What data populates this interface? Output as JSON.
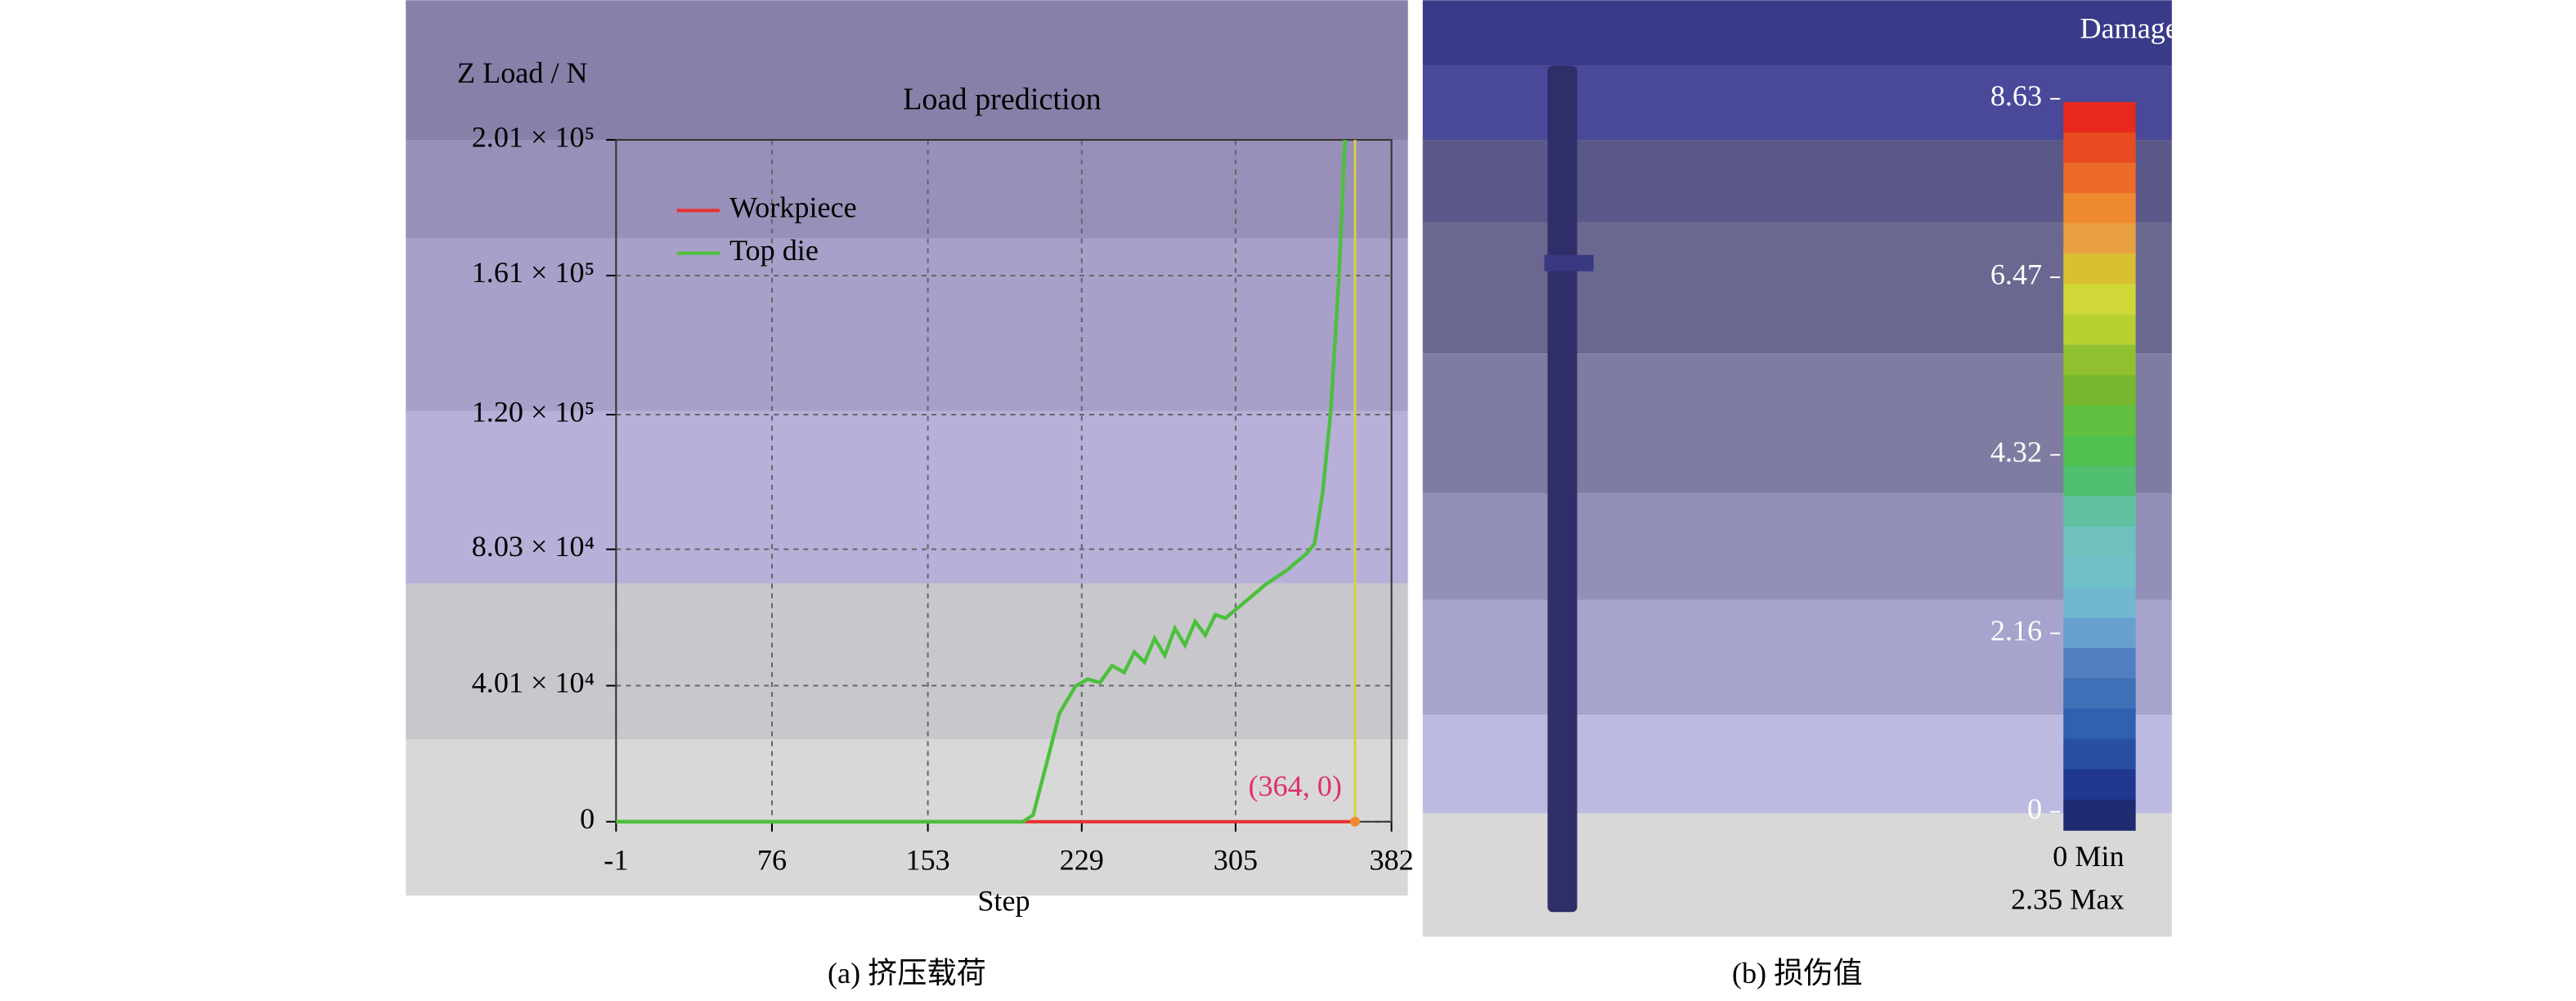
{
  "chart_data": {
    "type": "line",
    "title": "Load prediction",
    "y_label": "Z Load / N",
    "x_label": "Step",
    "caption": "(a) 挤压载荷",
    "xlim": [
      -1,
      382
    ],
    "xticks": [
      -1,
      76,
      153,
      229,
      305,
      382
    ],
    "ylim": [
      0,
      201000
    ],
    "yticks": [
      0,
      {
        "value": 40100,
        "label": "4.01 × 10⁴"
      },
      {
        "value": 80300,
        "label": "8.03 × 10⁴"
      },
      {
        "value": 120000,
        "label": "1.20 × 10⁵"
      },
      {
        "value": 161000,
        "label": "1.61 × 10⁵"
      },
      {
        "value": 201000,
        "label": "2.01 × 10⁵"
      }
    ],
    "grid": true,
    "legend": "upper-left",
    "series": [
      {
        "name": "Workpiece",
        "color": "#e83030",
        "x": [
          -1,
          364
        ],
        "values": [
          0,
          0
        ]
      },
      {
        "name": "Top die",
        "color": "#4cc03c",
        "x": [
          -1,
          50,
          100,
          150,
          200,
          205,
          212,
          218,
          222,
          226,
          232,
          238,
          244,
          250,
          255,
          260,
          265,
          270,
          275,
          280,
          285,
          290,
          295,
          300,
          310,
          320,
          330,
          336,
          340,
          344,
          348,
          352,
          356,
          359
        ],
        "values": [
          0,
          0,
          0,
          0,
          0,
          2000,
          18000,
          32000,
          36000,
          40000,
          42000,
          41000,
          46000,
          44000,
          50000,
          47000,
          54000,
          49000,
          57000,
          52000,
          59000,
          55000,
          61000,
          60000,
          65000,
          70000,
          74000,
          77000,
          79000,
          82000,
          97000,
          121000,
          160000,
          201000
        ]
      }
    ],
    "annotations": [
      {
        "text": "(364, 0)",
        "x": 364,
        "y": 0,
        "color": "#e0306a"
      }
    ]
  },
  "panel_b": {
    "title": "Damage",
    "caption": "(b) 损伤值",
    "min_label": "0 Min",
    "max_label": "2.35 Max",
    "colorbar": {
      "lim": [
        0,
        8.63
      ],
      "ticks": [
        8.63,
        6.47,
        4.32,
        2.16,
        0
      ],
      "colors": [
        "#e8281e",
        "#e84a22",
        "#ec6a2a",
        "#f08a30",
        "#e8a040",
        "#d8c030",
        "#d0d838",
        "#b8d030",
        "#90c030",
        "#78b830",
        "#60c040",
        "#50c050",
        "#50c070",
        "#60c0a0",
        "#70c0c0",
        "#70c0c8",
        "#70b8d0",
        "#68a0d0",
        "#5080c0",
        "#4070b8",
        "#3060b0",
        "#2850a0",
        "#203890",
        "#202a70"
      ]
    }
  }
}
